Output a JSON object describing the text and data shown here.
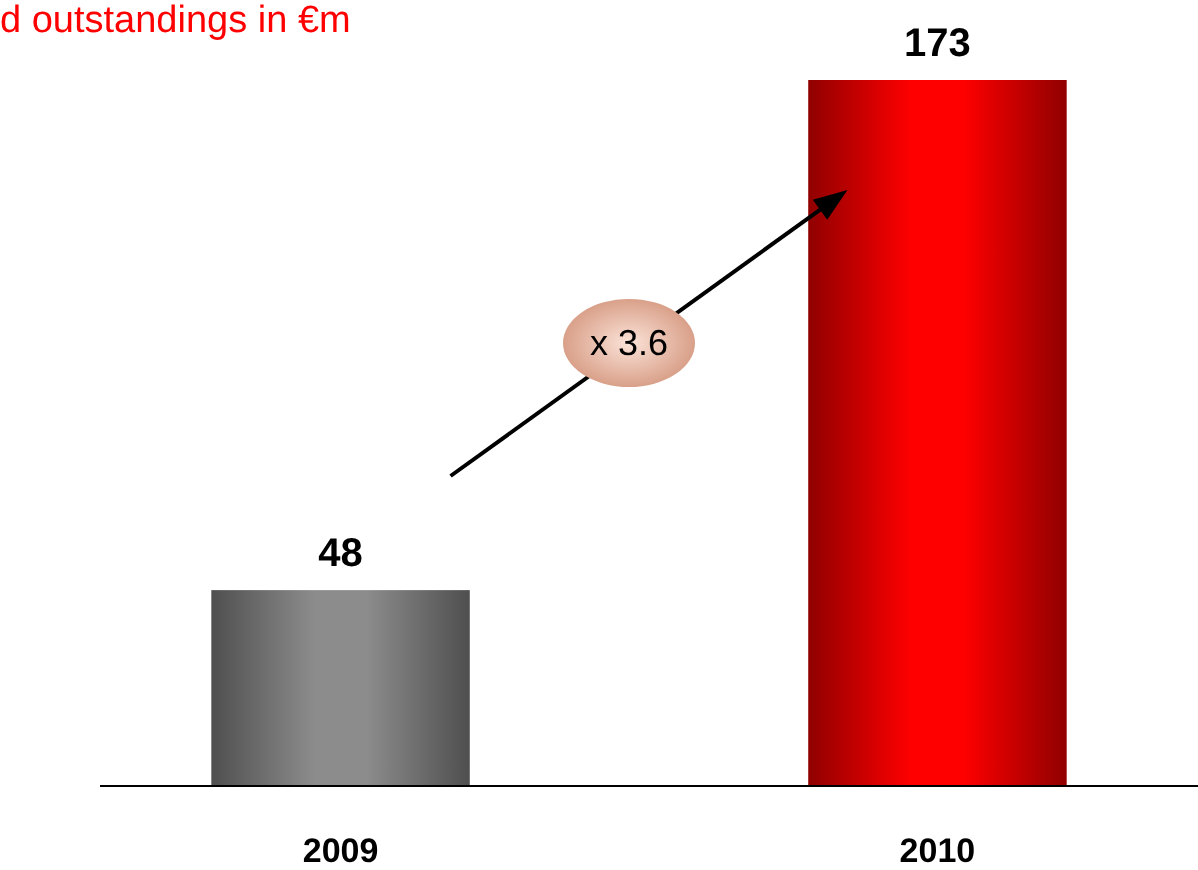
{
  "chart_data": {
    "type": "bar",
    "title": "d outstandings in €m",
    "categories": [
      "2009",
      "2010"
    ],
    "values": [
      48,
      173
    ],
    "colors": [
      "#8c8c8c",
      "#ff0000"
    ],
    "data_labels": true,
    "annotations": [
      "x 3.6"
    ]
  }
}
